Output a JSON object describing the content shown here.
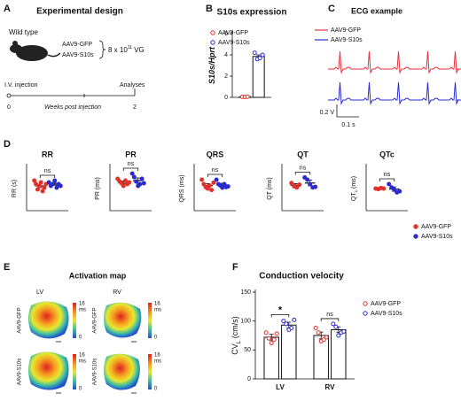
{
  "panel_labels": [
    "A",
    "B",
    "C",
    "D",
    "E",
    "F"
  ],
  "panel_a": {
    "title": "Experimental design",
    "mouse": "Wild type",
    "groups": [
      "AAV9-GFP",
      "AAV9-S10s"
    ],
    "dose": "8 x 10",
    "dose_exp": "11",
    "dose_unit": " VG",
    "start": "I.V. injection",
    "end": "Analyses",
    "timeline_start": "0",
    "timeline_end": "2",
    "timeline_label": "Weeks post injection"
  },
  "panel_c": {
    "title": "ECG example",
    "legend": [
      "AAV9-GFP",
      "AAV9-S10s"
    ],
    "colors": [
      "#e8323c",
      "#2b2bd0"
    ],
    "scale_v": "0.2 V",
    "scale_t": "0.1 s"
  },
  "panel_e": {
    "title": "Activation map",
    "columns": [
      "LV",
      "RV"
    ],
    "rows": [
      "AAV9-GFP",
      "AAV9-S10s"
    ],
    "scale_max": "16",
    "scale_unit": "ms",
    "scale_min": "0"
  },
  "chart_data": [
    {
      "type": "bar",
      "title": "S10s expression",
      "ylabel": "S10s/Hprt",
      "marker": "open",
      "legend": true,
      "categories": [
        null
      ],
      "ylim": [
        0,
        6
      ],
      "yticks": [
        0,
        2,
        4,
        6
      ],
      "series": [
        {
          "name": "AAV9-GFP",
          "color": "#e0312b",
          "values": [
            0.05
          ],
          "errors": [
            0.01
          ],
          "points": [
            [
              0.05,
              0.03,
              0.06
            ]
          ]
        },
        {
          "name": "AAV9-S10s",
          "color": "#2b2bcc",
          "values": [
            3.85
          ],
          "errors": [
            0.15
          ],
          "points": [
            [
              4.2,
              3.6,
              3.7,
              4.0
            ]
          ]
        }
      ]
    },
    {
      "type": "dot",
      "title": "RR",
      "ylabel": "RR (s)",
      "marker": "filled",
      "categories": [
        null
      ],
      "annotations": [
        "ns"
      ],
      "ylim": [
        0,
        0.25
      ],
      "series": [
        {
          "name": "AAV9-GFP",
          "color": "#e0312b",
          "values": [
            0.14
          ],
          "errors": [
            0.01
          ],
          "points": [
            [
              0.17,
              0.15,
              0.12,
              0.14,
              0.16,
              0.11,
              0.13,
              0.15
            ]
          ]
        },
        {
          "name": "AAV9-S10s",
          "color": "#2b2bcc",
          "values": [
            0.15
          ],
          "errors": [
            0.006
          ],
          "points": [
            [
              0.16,
              0.14,
              0.15,
              0.17,
              0.13,
              0.15,
              0.14
            ]
          ]
        }
      ]
    },
    {
      "type": "dot",
      "title": "PR",
      "ylabel": "PR (ms)",
      "marker": "filled",
      "categories": [
        null
      ],
      "annotations": [
        "ns"
      ],
      "ylim": [
        0,
        50
      ],
      "series": [
        {
          "name": "AAV9-GFP",
          "color": "#e0312b",
          "values": [
            32
          ],
          "errors": [
            1.5
          ],
          "points": [
            [
              36,
              33,
              31,
              28,
              34,
              30,
              32
            ]
          ]
        },
        {
          "name": "AAV9-S10s",
          "color": "#2b2bcc",
          "values": [
            34
          ],
          "errors": [
            3
          ],
          "points": [
            [
              42,
              38,
              33,
              28,
              30,
              36,
              31
            ]
          ]
        }
      ]
    },
    {
      "type": "dot",
      "title": "QRS",
      "ylabel": "QRS (ms)",
      "marker": "filled",
      "categories": [
        null
      ],
      "annotations": [
        "ns"
      ],
      "ylim": [
        0,
        15
      ],
      "series": [
        {
          "name": "AAV9-GFP",
          "color": "#e0312b",
          "values": [
            8.5
          ],
          "errors": [
            0.7
          ],
          "points": [
            [
              10.5,
              9,
              8,
              7.5,
              8.5,
              7,
              9.5
            ]
          ]
        },
        {
          "name": "AAV9-S10s",
          "color": "#2b2bcc",
          "values": [
            8.7
          ],
          "errors": [
            0.6
          ],
          "points": [
            [
              10.5,
              9,
              8.5,
              7.8,
              9,
              8,
              8.2
            ]
          ]
        }
      ]
    },
    {
      "type": "dot",
      "title": "QT",
      "ylabel": "QT (ms)",
      "marker": "filled",
      "categories": [
        null
      ],
      "annotations": [
        "ns"
      ],
      "ylim": [
        0,
        80
      ],
      "series": [
        {
          "name": "AAV9-GFP",
          "color": "#e0312b",
          "values": [
            46
          ],
          "errors": [
            3
          ],
          "points": [
            [
              50,
              44,
              42,
              47
            ]
          ]
        },
        {
          "name": "AAV9-S10s",
          "color": "#2b2bcc",
          "values": [
            50
          ],
          "errors": [
            5
          ],
          "points": [
            [
              60,
              56,
              48,
              42,
              43
            ]
          ]
        }
      ]
    },
    {
      "type": "dot",
      "title": "QTc",
      "ylabel": "QT",
      "ylabel_sub": "c",
      "ylabel_unit": " (ms)",
      "marker": "filled",
      "legend": true,
      "categories": [
        null
      ],
      "annotations": [
        "ns"
      ],
      "ylim": [
        0,
        80
      ],
      "series": [
        {
          "name": "AAV9-GFP",
          "color": "#e0312b",
          "values": [
            40
          ],
          "errors": [
            0.8
          ],
          "points": [
            [
              40,
              39,
              41,
              40
            ]
          ]
        },
        {
          "name": "AAV9-S10s",
          "color": "#2b2bcc",
          "values": [
            39
          ],
          "errors": [
            4
          ],
          "points": [
            [
              48,
              42,
              38,
              33,
              35
            ]
          ]
        }
      ]
    },
    {
      "type": "bar",
      "title": "Conduction velocity",
      "ylabel": "CV",
      "ylabel_sub": "L",
      "ylabel_unit": " (cm/s)",
      "marker": "open",
      "legend": true,
      "categories": [
        "LV",
        "RV"
      ],
      "annotations": [
        "*",
        "ns"
      ],
      "ylim": [
        0,
        150
      ],
      "yticks": [
        0,
        50,
        100,
        150
      ],
      "series": [
        {
          "name": "AAV9-GFP",
          "color": "#e0312b",
          "values": [
            72,
            75
          ],
          "errors": [
            5,
            6
          ],
          "points": [
            [
              80,
              70,
              62,
              68,
              78
            ],
            [
              88,
              80,
              65,
              68,
              72
            ]
          ]
        },
        {
          "name": "AAV9-S10s",
          "color": "#2b2bcc",
          "values": [
            93,
            85
          ],
          "errors": [
            5,
            5
          ],
          "points": [
            [
              100,
              95,
              85,
              88,
              102
            ],
            [
              95,
              90,
              75,
              80,
              82
            ]
          ]
        }
      ]
    }
  ]
}
